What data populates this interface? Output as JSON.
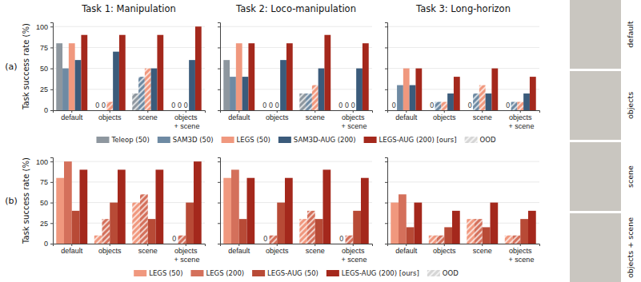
{
  "chart_data": [
    {
      "type": "bar",
      "title": "Task 1: Manipulation",
      "y_label": "Task success rate (%)",
      "annotation": "(a)",
      "categories": [
        "default",
        "objects",
        "scene",
        "objects + scene"
      ],
      "ylim": [
        0,
        105
      ],
      "yticks": [
        0,
        25,
        50,
        75,
        100
      ],
      "grid": true,
      "legend": "below",
      "hatch_label": "OOD",
      "series": [
        {
          "name": "Teleop (50)",
          "color": "#8e979f",
          "values": [
            80,
            0,
            20,
            0
          ],
          "ood": [
            false,
            true,
            true,
            true
          ]
        },
        {
          "name": "SAM3D (50)",
          "color": "#6e8aa3",
          "values": [
            50,
            0,
            40,
            0
          ],
          "ood": [
            false,
            true,
            true,
            true
          ]
        },
        {
          "name": "LEGS (50)",
          "color": "#f0987e",
          "values": [
            80,
            10,
            50,
            0
          ],
          "ood": [
            false,
            true,
            true,
            true
          ]
        },
        {
          "name": "SAM3D-AUG (200)",
          "color": "#3b5b7b",
          "values": [
            60,
            70,
            50,
            60
          ]
        },
        {
          "name": "LEGS-AUG (200) [ours]",
          "color": "#a4281c",
          "values": [
            90,
            90,
            90,
            100
          ]
        }
      ]
    },
    {
      "type": "bar",
      "title": "Task 2: Loco-manipulation",
      "categories": [
        "default",
        "objects",
        "scene",
        "objects + scene"
      ],
      "ylim": [
        0,
        105
      ],
      "yticks": [
        0,
        25,
        50,
        75,
        100
      ],
      "grid": true,
      "tick_labels": "x",
      "series": [
        {
          "color": "#8e979f",
          "values": [
            60,
            0,
            20,
            0
          ],
          "ood": [
            false,
            true,
            true,
            true
          ]
        },
        {
          "color": "#6e8aa3",
          "values": [
            40,
            0,
            20,
            0
          ],
          "ood": [
            false,
            true,
            true,
            true
          ]
        },
        {
          "color": "#f0987e",
          "values": [
            80,
            0,
            30,
            0
          ],
          "ood": [
            false,
            true,
            true,
            true
          ]
        },
        {
          "color": "#3b5b7b",
          "values": [
            40,
            60,
            50,
            50
          ]
        },
        {
          "color": "#a4281c",
          "values": [
            80,
            80,
            90,
            80
          ]
        }
      ]
    },
    {
      "type": "bar",
      "title": "Task 3: Long-horizon",
      "categories": [
        "default",
        "objects",
        "scene",
        "objects + scene"
      ],
      "ylim": [
        0,
        105
      ],
      "yticks": [
        0,
        25,
        50,
        75,
        100
      ],
      "grid": true,
      "tick_labels": "x",
      "series": [
        {
          "color": "#8e979f",
          "values": [
            0,
            0,
            0,
            0
          ],
          "ood": [
            false,
            true,
            true,
            true
          ]
        },
        {
          "color": "#6e8aa3",
          "values": [
            30,
            10,
            20,
            10
          ],
          "ood": [
            false,
            true,
            true,
            true
          ]
        },
        {
          "color": "#f0987e",
          "values": [
            50,
            10,
            30,
            10
          ],
          "ood": [
            false,
            true,
            true,
            true
          ]
        },
        {
          "color": "#3b5b7b",
          "values": [
            30,
            20,
            20,
            20
          ]
        },
        {
          "color": "#a4281c",
          "values": [
            50,
            40,
            50,
            40
          ]
        }
      ]
    },
    {
      "type": "bar",
      "y_label": "Task success rate (%)",
      "annotation": "(b)",
      "categories": [
        "default",
        "objects",
        "scene",
        "objects + scene"
      ],
      "ylim": [
        0,
        105
      ],
      "yticks": [
        0,
        25,
        50,
        75,
        100
      ],
      "grid": true,
      "legend": "below",
      "hatch_label": "OOD",
      "series": [
        {
          "name": "LEGS (50)",
          "color": "#f0987e",
          "values": [
            80,
            10,
            50,
            0
          ],
          "ood": [
            false,
            true,
            true,
            true
          ]
        },
        {
          "name": "LEGS (200)",
          "color": "#d4705b",
          "values": [
            100,
            30,
            60,
            10
          ],
          "ood": [
            false,
            true,
            true,
            true
          ]
        },
        {
          "name": "LEGS-AUG (50)",
          "color": "#b84a36",
          "values": [
            40,
            50,
            30,
            50
          ]
        },
        {
          "name": "LEGS-AUG (200) [ours]",
          "color": "#a4281c",
          "values": [
            90,
            90,
            90,
            100
          ]
        }
      ]
    },
    {
      "type": "bar",
      "categories": [
        "default",
        "objects",
        "scene",
        "objects + scene"
      ],
      "ylim": [
        0,
        105
      ],
      "yticks": [
        0,
        25,
        50,
        75,
        100
      ],
      "grid": true,
      "tick_labels": "x",
      "series": [
        {
          "color": "#f0987e",
          "values": [
            80,
            0,
            30,
            0
          ],
          "ood": [
            false,
            true,
            true,
            true
          ]
        },
        {
          "color": "#d4705b",
          "values": [
            90,
            10,
            40,
            10
          ],
          "ood": [
            false,
            true,
            true,
            true
          ]
        },
        {
          "color": "#b84a36",
          "values": [
            30,
            50,
            30,
            40
          ]
        },
        {
          "color": "#a4281c",
          "values": [
            80,
            80,
            90,
            80
          ]
        }
      ]
    },
    {
      "type": "bar",
      "categories": [
        "default",
        "objects",
        "scene",
        "objects + scene"
      ],
      "ylim": [
        0,
        105
      ],
      "yticks": [
        0,
        25,
        50,
        75,
        100
      ],
      "grid": true,
      "tick_labels": "x",
      "series": [
        {
          "color": "#f0987e",
          "values": [
            50,
            10,
            30,
            10
          ],
          "ood": [
            false,
            true,
            true,
            true
          ]
        },
        {
          "color": "#d4705b",
          "values": [
            60,
            10,
            30,
            10
          ],
          "ood": [
            false,
            true,
            true,
            true
          ]
        },
        {
          "color": "#b84a36",
          "values": [
            20,
            20,
            20,
            30
          ]
        },
        {
          "color": "#a4281c",
          "values": [
            50,
            40,
            50,
            40
          ]
        }
      ]
    }
  ],
  "images": [
    {
      "label": "default"
    },
    {
      "label": "objects"
    },
    {
      "label": "scene"
    },
    {
      "label": "objects + scene"
    }
  ]
}
